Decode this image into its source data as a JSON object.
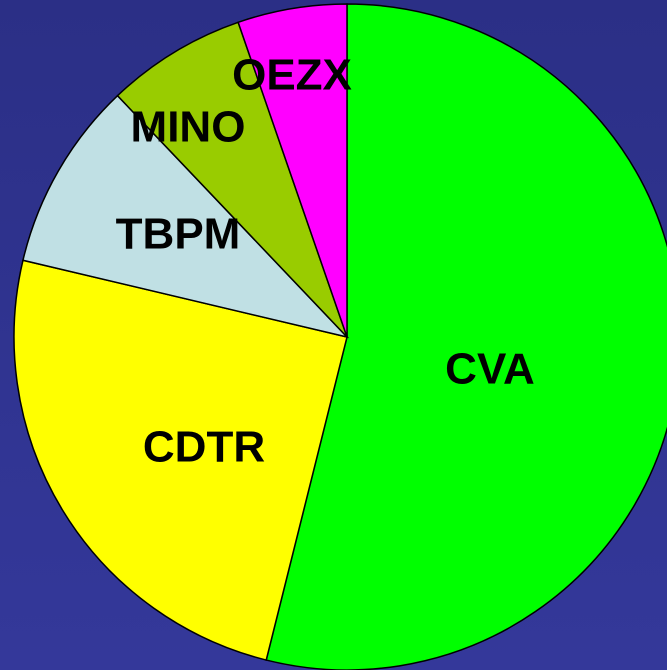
{
  "chart_data": {
    "type": "pie",
    "categories": [
      "CVA",
      "CDTR",
      "TBPM",
      "MINO",
      "OEZX"
    ],
    "values": [
      53.9,
      24.8,
      9.2,
      6.8,
      5.3
    ],
    "colors": [
      "#00ff00",
      "#ffff00",
      "#c0e0e4",
      "#99cc00",
      "#ff00ff"
    ]
  }
}
